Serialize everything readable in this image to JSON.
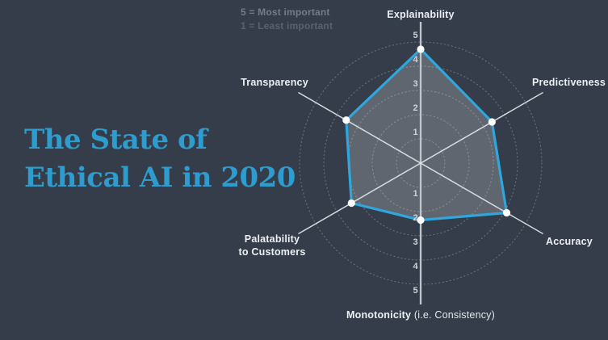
{
  "title": {
    "line1": "The State of",
    "line2": "Ethical AI in 2020"
  },
  "legend": {
    "most": "5 = Most important",
    "least": "1 = Least important"
  },
  "labels": {
    "explainability": "Explainability",
    "predictiveness": "Predictiveness",
    "accuracy": "Accuracy",
    "monotonicity_bold": "Monotonicity",
    "monotonicity_rest": " (i.e. Consistency)",
    "palatability_line1": "Palatability",
    "palatability_line2": "to Customers",
    "transparency": "Transparency"
  },
  "colors": {
    "background": "#343D49",
    "title_blue": "#2E9CCE",
    "series_blue": "#2FA6DC",
    "polygon_fill": "rgba(255,255,255,0.21)",
    "grid_ring": "rgba(255,255,255,0.26)",
    "vertical_axis": "#BFC6CD",
    "diagonal_axis": "#E2E6EA",
    "tick_text": "#CDD3DA",
    "label_text": "#EDF0F3",
    "point_fill": "#FFFFFF"
  },
  "chart_data": {
    "type": "radar",
    "title": "The State of Ethical AI in 2020",
    "categories": [
      "Explainability",
      "Predictiveness",
      "Accuracy",
      "Monotonicity (i.e. Consistency)",
      "Palatability to Customers",
      "Transparency"
    ],
    "values": [
      4.7,
      3.4,
      4.1,
      2.35,
      3.3,
      3.55
    ],
    "scale": {
      "min": 0,
      "max": 5,
      "ring_step": 1,
      "ticks": [
        1,
        2,
        3,
        4,
        5
      ]
    },
    "scale_notes": [
      "5 = Most important",
      "1 = Least important"
    ],
    "grid": "dotted-circles",
    "legend_position": "top-left",
    "series_color": "#2FA6DC"
  }
}
